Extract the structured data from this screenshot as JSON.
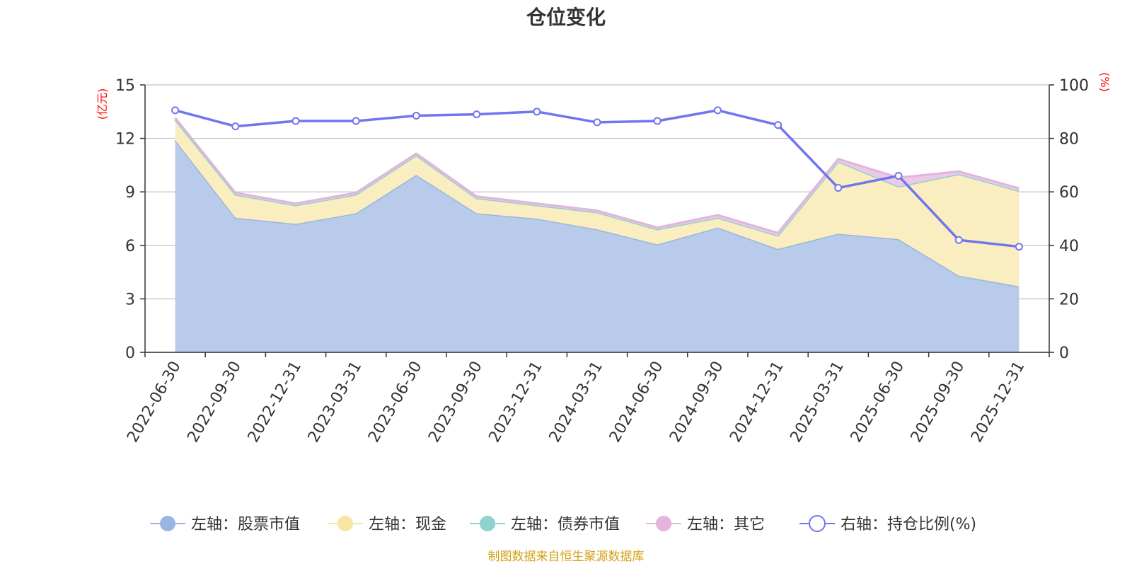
{
  "chart_data": {
    "type": "area",
    "title": "仓位变化",
    "categories": [
      "2022-06-30",
      "2022-09-30",
      "2022-12-31",
      "2023-03-31",
      "2023-06-30",
      "2023-09-30",
      "2023-12-31",
      "2024-03-31",
      "2024-06-30",
      "2024-09-30",
      "2024-12-31",
      "2025-03-31",
      "2025-06-30",
      "2025-09-30",
      "2025-12-31"
    ],
    "left_axis": {
      "unit": "(亿元)",
      "range": [
        0,
        15
      ],
      "ticks": [
        0,
        3,
        6,
        9,
        12,
        15
      ]
    },
    "right_axis": {
      "unit": "(%)",
      "range": [
        0,
        100
      ],
      "ticks": [
        0,
        20,
        40,
        60,
        80,
        100
      ]
    },
    "stacked": true,
    "series": [
      {
        "name": "左轴：股票市值",
        "axis": "left",
        "type": "area",
        "color": "#9ab6e0",
        "fill": "#b8cbea",
        "values": [
          11.9,
          7.55,
          7.2,
          7.8,
          9.95,
          7.8,
          7.5,
          6.9,
          6.05,
          7.0,
          5.8,
          6.65,
          6.35,
          4.3,
          3.7
        ]
      },
      {
        "name": "左轴：现金",
        "axis": "left",
        "type": "area",
        "color": "#f7e6a3",
        "fill": "#faedbf",
        "values": [
          1.15,
          1.3,
          1.05,
          1.05,
          1.1,
          0.85,
          0.75,
          0.95,
          0.85,
          0.55,
          0.75,
          4.05,
          2.95,
          5.7,
          5.35
        ]
      },
      {
        "name": "左轴：债券市值",
        "axis": "left",
        "type": "area",
        "color": "#8fd3d1",
        "fill": "#b6e3e1",
        "values": [
          0,
          0,
          0,
          0,
          0,
          0,
          0,
          0,
          0,
          0,
          0,
          0,
          0,
          0,
          0
        ]
      },
      {
        "name": "左轴：其它",
        "axis": "left",
        "type": "area",
        "color": "#e3b4dc",
        "fill": "#ecc9e6",
        "values": [
          0.1,
          0.1,
          0.1,
          0.1,
          0.1,
          0.1,
          0.1,
          0.1,
          0.1,
          0.15,
          0.15,
          0.15,
          0.5,
          0.15,
          0.15
        ]
      },
      {
        "name": "右轴：持仓比例(%)",
        "axis": "right",
        "type": "line",
        "color": "#7075f0",
        "values": [
          90.5,
          84.5,
          86.5,
          86.5,
          88.5,
          89.0,
          90.0,
          86.0,
          86.5,
          90.5,
          85.0,
          61.5,
          66.0,
          42.0,
          39.5
        ]
      }
    ],
    "legend_position": "bottom",
    "grid": true
  },
  "footer": {
    "source": "制图数据来自恒生聚源数据库"
  }
}
